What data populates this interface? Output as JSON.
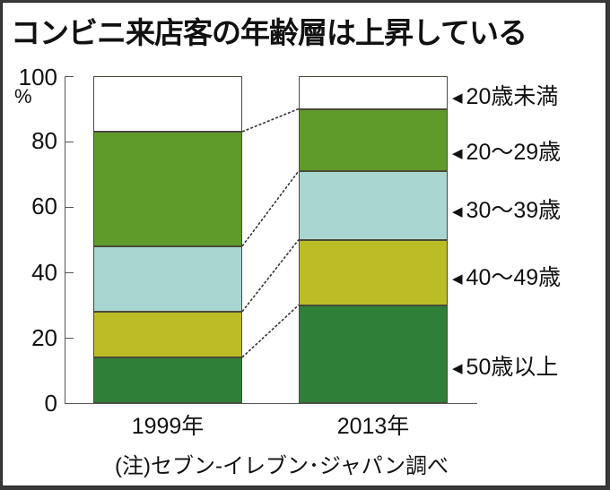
{
  "title": "コンビニ来店客の年齢層は上昇している",
  "y_axis": {
    "unit": "%",
    "ticks": [
      "100",
      "80",
      "60",
      "40",
      "20",
      "0"
    ]
  },
  "categories": [
    "1999年",
    "2013年"
  ],
  "legend": [
    {
      "label": "20歳未満",
      "arrow": "◀"
    },
    {
      "label": "20～29歳",
      "arrow": "◀"
    },
    {
      "label": "30～39歳",
      "arrow": "◀"
    },
    {
      "label": "40～49歳",
      "arrow": "◀"
    },
    {
      "label": "50歳以上",
      "arrow": "◀"
    }
  ],
  "note": "(注)セブン-イレブン･ジャパン調べ",
  "colors": {
    "under20": "#ffffff",
    "age20_29": "#5e9b2a",
    "age30_39": "#a9d6d0",
    "age40_49": "#bcbd26",
    "age50plus": "#2f7f38"
  },
  "chart_data": {
    "type": "bar",
    "stacked": true,
    "title": "コンビニ来店客の年齢層は上昇している",
    "xlabel": "",
    "ylabel": "%",
    "ylim": [
      0,
      100
    ],
    "yticks": [
      0,
      20,
      40,
      60,
      80,
      100
    ],
    "categories": [
      "1999年",
      "2013年"
    ],
    "series": [
      {
        "name": "50歳以上",
        "values": [
          14,
          30
        ],
        "color": "#2f7f38"
      },
      {
        "name": "40～49歳",
        "values": [
          14,
          20
        ],
        "color": "#bcbd26"
      },
      {
        "name": "30～39歳",
        "values": [
          20,
          21
        ],
        "color": "#a9d6d0"
      },
      {
        "name": "20～29歳",
        "values": [
          35,
          19
        ],
        "color": "#5e9b2a"
      },
      {
        "name": "20歳未満",
        "values": [
          17,
          10
        ],
        "color": "#ffffff"
      }
    ],
    "legend_position": "right",
    "grid": false,
    "connector_lines": "dotted",
    "annotation": "(注)セブン-イレブン･ジャパン調べ"
  }
}
